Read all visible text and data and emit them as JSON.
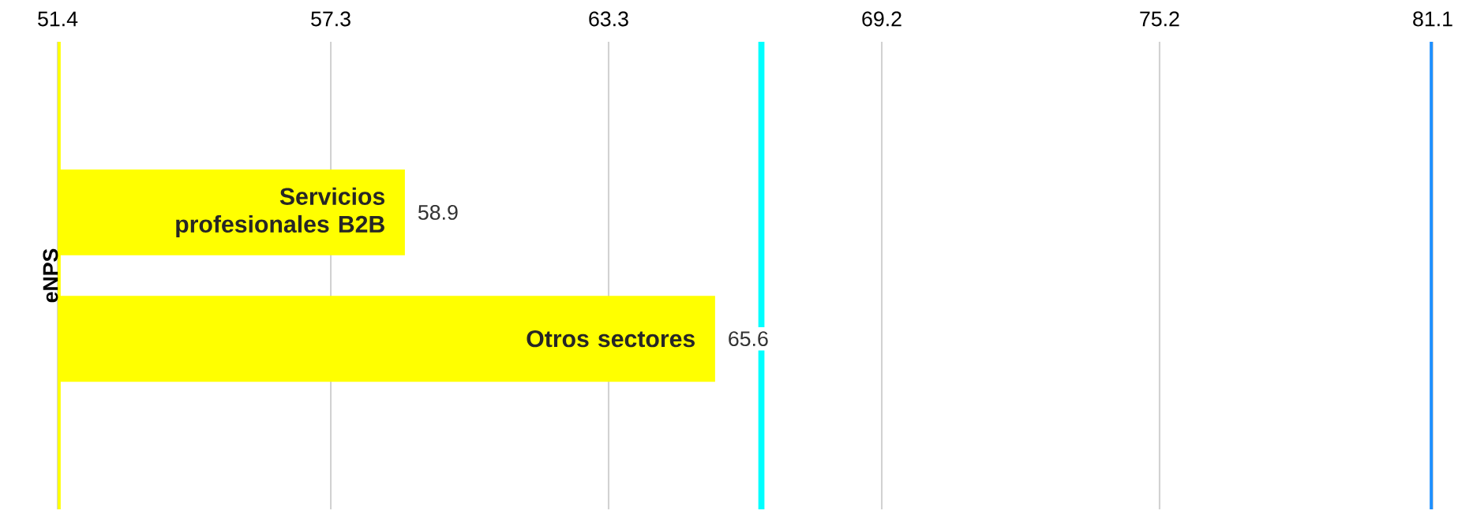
{
  "chart_data": {
    "type": "bar",
    "orientation": "horizontal",
    "ylabel": "eNPS",
    "categories": [
      "Servicios profesionales B2B",
      "Otros sectores"
    ],
    "values": [
      58.9,
      65.6
    ],
    "color": "#ffff00",
    "data_labels": true,
    "xlim": [
      51.4,
      81.1
    ],
    "xticks": [
      51.4,
      57.3,
      63.3,
      69.2,
      75.2,
      81.1
    ],
    "grid": "x",
    "ref_lines": [
      {
        "axis": "x",
        "value": 51.4,
        "color": "#ffff00"
      },
      {
        "axis": "x",
        "value": 66.6,
        "color": "#00ffff"
      },
      {
        "axis": "x",
        "value": 81.1,
        "color": "#1e90ff"
      }
    ]
  }
}
